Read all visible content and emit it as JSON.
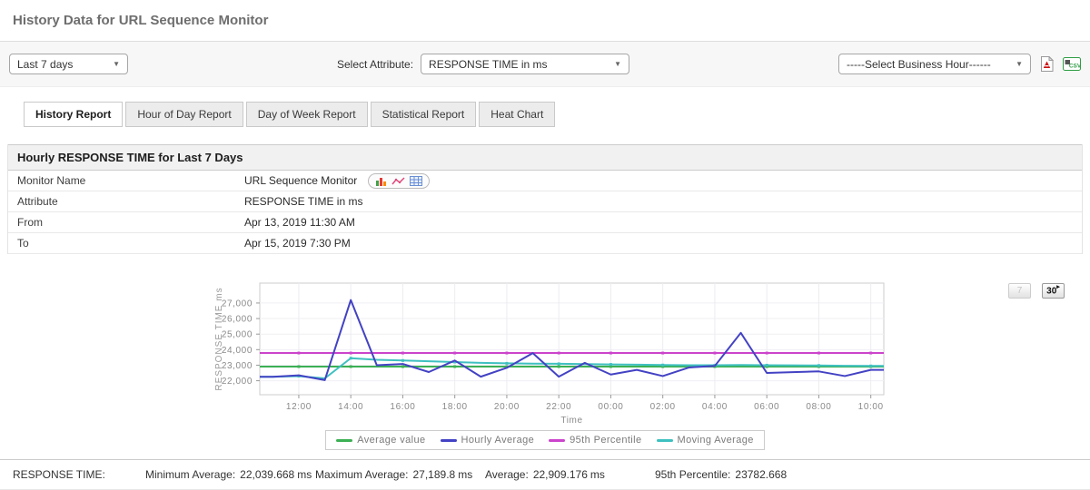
{
  "page": {
    "title": "History Data for URL Sequence Monitor"
  },
  "toolbar": {
    "period_select": {
      "value": "Last 7 days"
    },
    "attribute_label": "Select Attribute:",
    "attribute_select": {
      "value": "RESPONSE TIME in ms"
    },
    "business_hour_select": {
      "value": "-----Select Business Hour------"
    }
  },
  "tabs": [
    {
      "label": "History Report",
      "active": true
    },
    {
      "label": "Hour of Day Report",
      "active": false
    },
    {
      "label": "Day of Week Report",
      "active": false
    },
    {
      "label": "Statistical Report",
      "active": false
    },
    {
      "label": "Heat Chart",
      "active": false
    }
  ],
  "report": {
    "header": "Hourly RESPONSE TIME for Last 7 Days",
    "rows": [
      {
        "label": "Monitor Name",
        "value": "URL Sequence Monitor"
      },
      {
        "label": "Attribute",
        "value": "RESPONSE TIME in ms"
      },
      {
        "label": "From",
        "value": "Apr 13, 2019 11:30 AM"
      },
      {
        "label": "To",
        "value": "Apr 15, 2019 7:30 PM"
      }
    ]
  },
  "chart_controls": {
    "button_7": "7",
    "button_30": "30",
    "button_30_sup": "▸"
  },
  "chart_data": {
    "type": "line",
    "title": "",
    "xlabel": "Time",
    "ylabel": "RESPONSE TIME ms",
    "x": [
      "11:00",
      "12:00",
      "13:00",
      "14:00",
      "15:00",
      "16:00",
      "17:00",
      "18:00",
      "19:00",
      "20:00",
      "21:00",
      "22:00",
      "23:00",
      "00:00",
      "01:00",
      "02:00",
      "03:00",
      "04:00",
      "05:00",
      "06:00",
      "07:00",
      "08:00",
      "09:00",
      "10:00"
    ],
    "x_ticks": [
      "12:00",
      "14:00",
      "16:00",
      "18:00",
      "20:00",
      "22:00",
      "00:00",
      "02:00",
      "04:00",
      "06:00",
      "08:00",
      "10:00"
    ],
    "y_ticks": [
      22000,
      23000,
      24000,
      25000,
      26000,
      27000
    ],
    "y_tick_labels": [
      "22,000",
      "23,000",
      "24,000",
      "25,000",
      "26,000",
      "27,000"
    ],
    "ylim": [
      21100,
      28280
    ],
    "grid": true,
    "legend_position": "bottom",
    "series": [
      {
        "name": "Average value",
        "color": "#3cb054",
        "constant": 22909.176,
        "markers": true
      },
      {
        "name": "Hourly Average",
        "color": "#4342c4",
        "values": [
          22250,
          22350,
          22040,
          27190,
          23000,
          23080,
          22560,
          23300,
          22260,
          22830,
          23780,
          22260,
          23150,
          22400,
          22700,
          22300,
          22850,
          22950,
          25080,
          22500,
          22550,
          22600,
          22300,
          22700
        ]
      },
      {
        "name": "95th Percentile",
        "color": "#cb44cb",
        "constant": 23782.668,
        "markers": true
      },
      {
        "name": "Moving Average",
        "color": "#3fc0c0",
        "markers": true,
        "values": [
          22250,
          22300,
          22150,
          23450,
          23350,
          23300,
          23250,
          23200,
          23150,
          23120,
          23100,
          23090,
          23070,
          23050,
          23030,
          23010,
          23000,
          23000,
          23010,
          23000,
          22990,
          22980,
          22960,
          22950
        ]
      }
    ]
  },
  "stats": {
    "title": "RESPONSE TIME:",
    "items": [
      {
        "label": "Minimum Average:",
        "value": "22,039.668",
        "unit": "ms"
      },
      {
        "label": "Maximum Average:",
        "value": "27,189.8",
        "unit": "ms"
      },
      {
        "label": "Average:",
        "value": "22,909.176",
        "unit": "ms"
      },
      {
        "label": "95th Percentile:",
        "value": "23782.668",
        "unit": ""
      }
    ]
  }
}
